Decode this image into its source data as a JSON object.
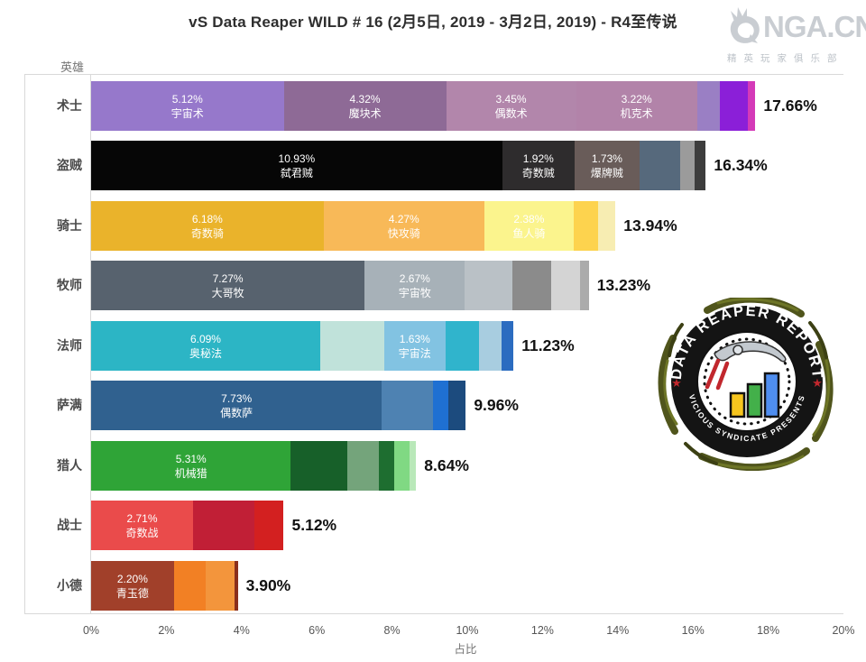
{
  "title": "vS Data Reaper WILD # 16 (2月5日, 2019 - 3月2日, 2019) - R4至传说",
  "nga": {
    "name": "NGA.CN",
    "subtitle": "精英玩家俱乐部",
    "color": "#c9cdd2"
  },
  "axis": {
    "y_label": "英雄",
    "x_label": "占比",
    "x_ticks": [
      "0%",
      "2%",
      "4%",
      "6%",
      "8%",
      "10%",
      "12%",
      "14%",
      "16%",
      "18%",
      "20%"
    ]
  },
  "badge": {
    "top_text": "DATA REAPER REPORT",
    "bottom_text": "VICIOUS SYNDICATE PRESENTS",
    "ring_color": "#141414",
    "star_color": "#c1272d",
    "vine_color": "#50551c",
    "bar_colors": [
      "#f6c51e",
      "#43b04a",
      "#4f8ef0"
    ],
    "slash_color": "#c1272d"
  },
  "chart_data": {
    "type": "bar",
    "stacked": true,
    "orientation": "horizontal",
    "title": "vS Data Reaper WILD # 16 (2月5日, 2019 - 3月2日, 2019) - R4至传说",
    "xlabel": "占比",
    "ylabel": "英雄",
    "xlim": [
      0,
      20
    ],
    "x_tick_step": 2,
    "categories": [
      "术士",
      "盗贼",
      "骑士",
      "牧师",
      "法师",
      "萨满",
      "猎人",
      "战士",
      "小德"
    ],
    "totals": [
      17.66,
      16.34,
      13.94,
      13.23,
      11.23,
      9.96,
      8.64,
      5.12,
      3.9
    ],
    "rows": [
      {
        "hero": "术士",
        "total": 17.66,
        "total_label": "17.66%",
        "segments": [
          {
            "value": 5.12,
            "pct": "5.12%",
            "label": "宇宙术",
            "color": "#9678cb"
          },
          {
            "value": 4.32,
            "pct": "4.32%",
            "label": "魔块术",
            "color": "#8e6a96"
          },
          {
            "value": 3.45,
            "pct": "3.45%",
            "label": "偶数术",
            "color": "#b286ab"
          },
          {
            "value": 3.22,
            "pct": "3.22%",
            "label": "机克术",
            "color": "#b283a9"
          },
          {
            "value": 0.6,
            "color": "#9a7fc4"
          },
          {
            "value": 0.75,
            "color": "#8b1fd8"
          },
          {
            "value": 0.2,
            "color": "#d43ab8"
          }
        ]
      },
      {
        "hero": "盗贼",
        "total": 16.34,
        "total_label": "16.34%",
        "segments": [
          {
            "value": 10.93,
            "pct": "10.93%",
            "label": "弑君贼",
            "color": "#060606"
          },
          {
            "value": 1.92,
            "pct": "1.92%",
            "label": "奇数贼",
            "color": "#2e2c2d"
          },
          {
            "value": 1.73,
            "pct": "1.73%",
            "label": "爆牌贼",
            "color": "#695c59"
          },
          {
            "value": 1.09,
            "color": "#56697c"
          },
          {
            "value": 0.38,
            "color": "#9b9b9b"
          },
          {
            "value": 0.29,
            "color": "#3d3d3d"
          }
        ]
      },
      {
        "hero": "骑士",
        "total": 13.94,
        "total_label": "13.94%",
        "segments": [
          {
            "value": 6.18,
            "pct": "6.18%",
            "label": "奇数骑",
            "color": "#eab32b"
          },
          {
            "value": 4.27,
            "pct": "4.27%",
            "label": "快攻骑",
            "color": "#f8b958"
          },
          {
            "value": 2.38,
            "pct": "2.38%",
            "label": "鱼人骑",
            "color": "#fbf48d"
          },
          {
            "value": 0.65,
            "color": "#fdd34e"
          },
          {
            "value": 0.46,
            "color": "#f7edb2"
          }
        ]
      },
      {
        "hero": "牧师",
        "total": 13.23,
        "total_label": "13.23%",
        "segments": [
          {
            "value": 7.27,
            "pct": "7.27%",
            "label": "大哥牧",
            "color": "#57626e"
          },
          {
            "value": 2.67,
            "pct": "2.67%",
            "label": "宇宙牧",
            "color": "#a7b1b8"
          },
          {
            "value": 1.25,
            "color": "#bac1c6"
          },
          {
            "value": 1.05,
            "color": "#8b8b8b"
          },
          {
            "value": 0.75,
            "color": "#d4d4d4"
          },
          {
            "value": 0.24,
            "color": "#ababab"
          }
        ]
      },
      {
        "hero": "法师",
        "total": 11.23,
        "total_label": "11.23%",
        "segments": [
          {
            "value": 6.09,
            "pct": "6.09%",
            "label": "奥秘法",
            "color": "#2cb5c5"
          },
          {
            "value": 1.7,
            "color": "#c0e2da"
          },
          {
            "value": 1.63,
            "pct": "1.63%",
            "label": "宇宙法",
            "color": "#82c3e2"
          },
          {
            "value": 0.9,
            "color": "#30b4cc"
          },
          {
            "value": 0.6,
            "color": "#a8cde0"
          },
          {
            "value": 0.31,
            "color": "#2b6cc0"
          }
        ]
      },
      {
        "hero": "萨满",
        "total": 9.96,
        "total_label": "9.96%",
        "segments": [
          {
            "value": 7.73,
            "pct": "7.73%",
            "label": "偶数萨",
            "color": "#30618f"
          },
          {
            "value": 1.35,
            "color": "#4e82b2"
          },
          {
            "value": 0.42,
            "color": "#1f70d2"
          },
          {
            "value": 0.46,
            "color": "#1c4b7e"
          }
        ]
      },
      {
        "hero": "猎人",
        "total": 8.64,
        "total_label": "8.64%",
        "segments": [
          {
            "value": 5.31,
            "pct": "5.31%",
            "label": "机械猎",
            "color": "#2fa437"
          },
          {
            "value": 1.5,
            "color": "#176029"
          },
          {
            "value": 0.85,
            "color": "#74a47b"
          },
          {
            "value": 0.4,
            "color": "#1e6e30"
          },
          {
            "value": 0.4,
            "color": "#80d983"
          },
          {
            "value": 0.18,
            "color": "#b9e8b9"
          }
        ]
      },
      {
        "hero": "战士",
        "total": 5.12,
        "total_label": "5.12%",
        "segments": [
          {
            "value": 2.71,
            "pct": "2.71%",
            "label": "奇数战",
            "color": "#ea4b4b"
          },
          {
            "value": 1.62,
            "color": "#c11f36"
          },
          {
            "value": 0.79,
            "color": "#d32020"
          }
        ]
      },
      {
        "hero": "小德",
        "total": 3.9,
        "total_label": "3.90%",
        "segments": [
          {
            "value": 2.2,
            "pct": "2.20%",
            "label": "青玉德",
            "color": "#a1402a"
          },
          {
            "value": 0.85,
            "color": "#f28024"
          },
          {
            "value": 0.77,
            "color": "#f3953c"
          },
          {
            "value": 0.08,
            "color": "#8a2f1c"
          }
        ]
      }
    ]
  }
}
